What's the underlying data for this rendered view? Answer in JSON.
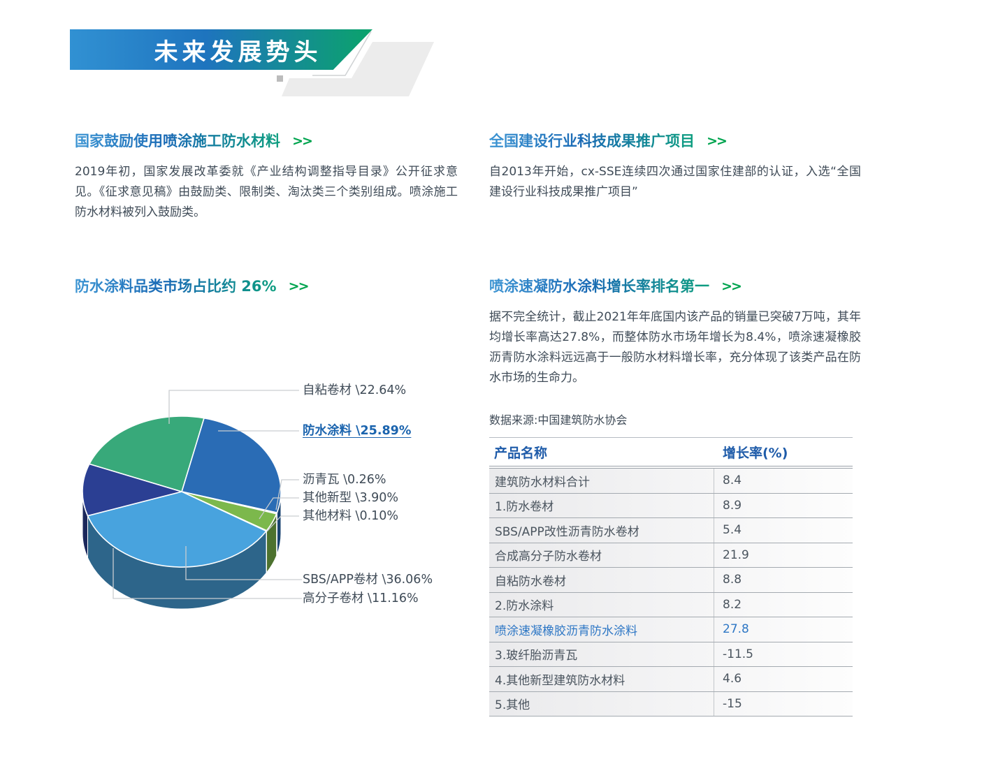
{
  "banner": {
    "title": "未来发展势头"
  },
  "sections": {
    "s1": {
      "title": "国家鼓励使用喷涂施工防水材料",
      "arrow": ">>",
      "body": "2019年初，国家发展改革委就《产业结构调整指导目录》公开征求意见。《征求意见稿》由鼓励类、限制类、淘汰类三个类别组成。喷涂施工防水材料被列入鼓励类。"
    },
    "s2": {
      "title": "全国建设行业科技成果推广项目",
      "arrow": ">>",
      "body": "自2013年开始，cx-SSE连续四次通过国家住建部的认证，入选“全国建设行业科技成果推广项目”"
    },
    "s3": {
      "title": "防水涂料品类市场占比约 26%",
      "arrow": ">>"
    },
    "s4": {
      "title": "喷涂速凝防水涂料增长率排名第一",
      "arrow": ">>",
      "body": "据不完全统计，截止2021年年底国内该产品的销量已突破7万吨，其年均增长率高达27.8%，而整体防水市场年增长为8.4%，喷涂速凝橡胶沥青防水涂料远远高于一般防水材料增长率，充分体现了该类产品在防水市场的生命力。",
      "source": "数据来源:中国建筑防水协会"
    }
  },
  "table": {
    "headers": [
      "产品名称",
      "增长率(%)"
    ],
    "rows": [
      {
        "name": "建筑防水材料合计",
        "value": "8.4",
        "highlight": false
      },
      {
        "name": "1.防水卷材",
        "value": "8.9",
        "highlight": false
      },
      {
        "name": "SBS/APP改性沥青防水卷材",
        "value": "5.4",
        "highlight": false
      },
      {
        "name": "合成高分子防水卷材",
        "value": "21.9",
        "highlight": false
      },
      {
        "name": "自粘防水卷材",
        "value": "8.8",
        "highlight": false
      },
      {
        "name": "2.防水涂料",
        "value": "8.2",
        "highlight": false
      },
      {
        "name": "喷涂速凝橡胶沥青防水涂料",
        "value": "27.8",
        "highlight": true
      },
      {
        "name": "3.玻纤胎沥青瓦",
        "value": "-11.5",
        "highlight": false
      },
      {
        "name": "4.其他新型建筑防水材料",
        "value": "4.6",
        "highlight": false
      },
      {
        "name": "5.其他",
        "value": "-15",
        "highlight": false
      }
    ]
  },
  "chart_data": {
    "type": "pie",
    "title": "防水涂料品类市场占比约 26%",
    "unit": "%",
    "legend_position": "right",
    "slices": [
      {
        "label": "自粘卷材",
        "value": 22.64,
        "display": "自粘卷材 \\22.64%",
        "color": "#38a97a",
        "highlighted": false
      },
      {
        "label": "防水涂料",
        "value": 25.89,
        "display": "防水涂料 \\25.89%",
        "color": "#2a6cb5",
        "highlighted": true
      },
      {
        "label": "沥青瓦",
        "value": 0.26,
        "display": "沥青瓦 \\0.26%",
        "color": "#f0953c",
        "highlighted": false
      },
      {
        "label": "其他新型",
        "value": 3.9,
        "display": "其他新型 \\3.90%",
        "color": "#7cb84c",
        "highlighted": false
      },
      {
        "label": "其他材料",
        "value": 0.1,
        "display": "其他材料 \\0.10%",
        "color": "#c6cacd",
        "highlighted": false
      },
      {
        "label": "SBS/APP卷材",
        "value": 36.06,
        "display": "SBS/APP卷材 \\36.06%",
        "color": "#48a3de",
        "highlighted": false
      },
      {
        "label": "高分子卷材",
        "value": 11.16,
        "display": "高分子卷材 \\11.16%",
        "color": "#2b3f93",
        "highlighted": false
      }
    ]
  }
}
